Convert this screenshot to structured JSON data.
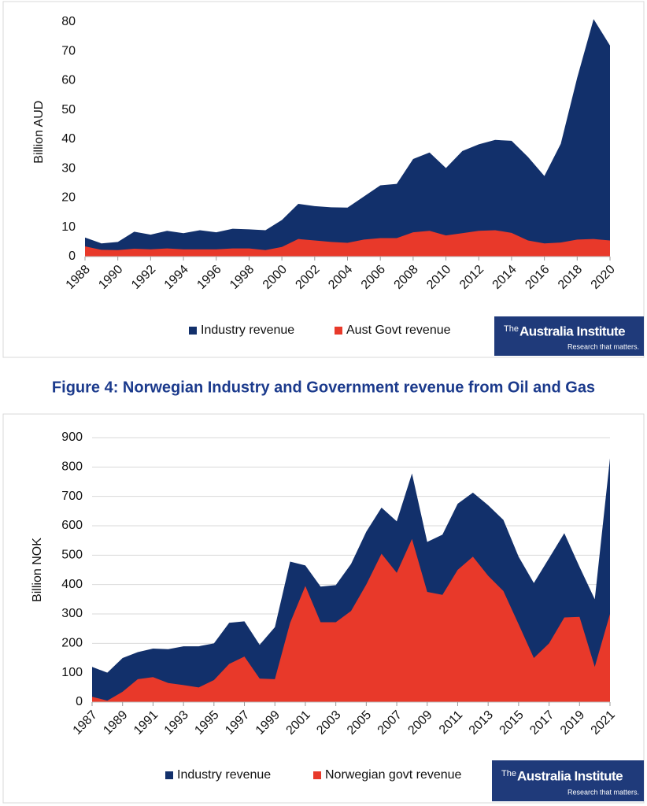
{
  "chart_data": [
    {
      "type": "area",
      "ylabel": "Billion AUD",
      "x": [
        1988,
        1989,
        1990,
        1991,
        1992,
        1993,
        1994,
        1995,
        1996,
        1997,
        1998,
        1999,
        2000,
        2001,
        2002,
        2003,
        2004,
        2005,
        2006,
        2007,
        2008,
        2009,
        2010,
        2011,
        2012,
        2013,
        2014,
        2015,
        2016,
        2017,
        2018,
        2019,
        2020
      ],
      "series": [
        {
          "name": "Industry revenue",
          "color": "#12306b",
          "values": [
            6.5,
            4.5,
            5,
            8.5,
            7.5,
            8.8,
            8,
            9,
            8.3,
            9.5,
            9.3,
            9,
            12.5,
            18,
            17.2,
            16.8,
            16.7,
            20.5,
            24.3,
            24.8,
            33.3,
            35.5,
            30.2,
            36,
            38.3,
            39.8,
            39.5,
            34,
            27.5,
            38.5,
            61,
            81,
            72
          ]
        },
        {
          "name": "Aust Govt revenue",
          "color": "#e8392a",
          "values": [
            3.5,
            2.3,
            2.2,
            2.7,
            2.5,
            2.8,
            2.5,
            2.5,
            2.5,
            2.8,
            2.8,
            2.2,
            3.3,
            6,
            5.5,
            5,
            4.7,
            5.8,
            6.3,
            6.3,
            8.3,
            8.8,
            7.2,
            8,
            8.8,
            9,
            8.1,
            5.5,
            4.5,
            4.8,
            5.8,
            6,
            5.5
          ]
        }
      ],
      "xlim": [
        1988,
        2020
      ],
      "xticks": [
        1988,
        1990,
        1992,
        1994,
        1996,
        1998,
        2000,
        2002,
        2004,
        2006,
        2008,
        2010,
        2012,
        2014,
        2016,
        2018,
        2020
      ],
      "ylim": [
        0,
        85
      ],
      "yticks": [
        0,
        10,
        20,
        30,
        40,
        50,
        60,
        70,
        80
      ],
      "grid": false,
      "legend": "bottom"
    },
    {
      "type": "area",
      "title": "Figure 4: Norwegian Industry and Government revenue from Oil and Gas",
      "ylabel": "Billion NOK",
      "x": [
        1987,
        1988,
        1989,
        1990,
        1991,
        1992,
        1993,
        1994,
        1995,
        1996,
        1997,
        1998,
        1999,
        2000,
        2001,
        2002,
        2003,
        2004,
        2005,
        2006,
        2007,
        2008,
        2009,
        2010,
        2011,
        2012,
        2013,
        2014,
        2015,
        2016,
        2017,
        2018,
        2019,
        2020,
        2021
      ],
      "series": [
        {
          "name": "Industry revenue",
          "color": "#12306b",
          "values": [
            120,
            100,
            150,
            170,
            182,
            180,
            190,
            190,
            200,
            270,
            275,
            195,
            255,
            478,
            465,
            393,
            398,
            470,
            580,
            662,
            615,
            778,
            545,
            570,
            675,
            713,
            670,
            620,
            495,
            405,
            490,
            575,
            460,
            350,
            830
          ]
        },
        {
          "name": "Norwegian govt revenue",
          "color": "#e8392a",
          "values": [
            18,
            5,
            35,
            78,
            85,
            65,
            58,
            50,
            75,
            130,
            155,
            80,
            78,
            270,
            395,
            272,
            272,
            310,
            400,
            505,
            440,
            555,
            375,
            365,
            450,
            495,
            430,
            378,
            265,
            150,
            200,
            288,
            290,
            120,
            300
          ]
        }
      ],
      "xlim": [
        1987,
        2021
      ],
      "xticks": [
        1987,
        1989,
        1991,
        1993,
        1995,
        1997,
        1999,
        2001,
        2003,
        2005,
        2007,
        2009,
        2011,
        2013,
        2015,
        2017,
        2019,
        2021
      ],
      "ylim": [
        0,
        900
      ],
      "yticks": [
        0,
        100,
        200,
        300,
        400,
        500,
        600,
        700,
        800,
        900
      ],
      "grid": true,
      "legend": "bottom"
    }
  ],
  "logo": {
    "prefix": "The",
    "name": "Australia Institute",
    "tagline": "Research that matters."
  }
}
